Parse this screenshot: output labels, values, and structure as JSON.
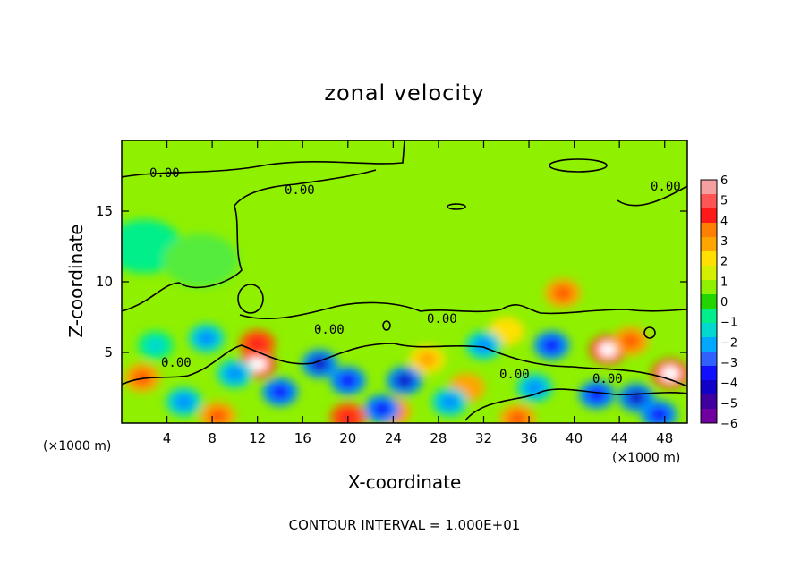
{
  "chart_data": {
    "type": "heatmap",
    "title": "zonal velocity",
    "xlabel": "X-coordinate",
    "ylabel": "Z-coordinate",
    "x_unit": "(×1000 m)",
    "xlim": [
      0,
      50
    ],
    "ylim": [
      0,
      20
    ],
    "x_ticks": [
      4,
      8,
      12,
      16,
      20,
      24,
      28,
      32,
      36,
      40,
      44,
      48
    ],
    "y_ticks": [
      5,
      10,
      15
    ],
    "footer": "CONTOUR INTERVAL = 1.000E+01",
    "contour_label": "0.00",
    "colorbar": {
      "ticks": [
        6,
        5,
        4,
        3,
        2,
        1,
        0,
        -1,
        -2,
        -3,
        -4,
        -5,
        -6
      ],
      "tick_labels": [
        "6",
        "5",
        "4",
        "3",
        "2",
        "1",
        "0",
        "−1",
        "−2",
        "−3",
        "−4",
        "−5",
        "−6"
      ],
      "colors": [
        "#f4a0a0",
        "#ff5555",
        "#ff1a1a",
        "#ff7f00",
        "#ffa500",
        "#ffe000",
        "#d4f000",
        "#8ff000",
        "#22d400",
        "#00ef8a",
        "#00d8d0",
        "#00a8ff",
        "#3060ff",
        "#1010ff",
        "#1000c8",
        "#4000a0",
        "#7000a0"
      ]
    },
    "field_features": [
      {
        "x": 12,
        "z": 4.2,
        "value": 6
      },
      {
        "x": 12,
        "z": 5.6,
        "value": 4.5
      },
      {
        "x": 39,
        "z": 9.2,
        "value": 3.5
      },
      {
        "x": 43,
        "z": 5.2,
        "value": 5.5
      },
      {
        "x": 45,
        "z": 5.8,
        "value": 4
      },
      {
        "x": 48.5,
        "z": 3.5,
        "value": 5.5
      },
      {
        "x": 1.8,
        "z": 3.2,
        "value": 4
      },
      {
        "x": 20,
        "z": 0.4,
        "value": 5
      },
      {
        "x": 24,
        "z": 0.8,
        "value": 4
      },
      {
        "x": 8.5,
        "z": 0.5,
        "value": 4
      },
      {
        "x": 35,
        "z": 0.3,
        "value": 4
      },
      {
        "x": 27,
        "z": 4.5,
        "value": 2.5
      },
      {
        "x": 30.5,
        "z": 2.5,
        "value": 3
      },
      {
        "x": 34,
        "z": 6.5,
        "value": 2
      },
      {
        "x": 17.5,
        "z": 4.2,
        "value": -5
      },
      {
        "x": 20,
        "z": 3.0,
        "value": -4.5
      },
      {
        "x": 25,
        "z": 3.0,
        "value": -5
      },
      {
        "x": 23,
        "z": 1.0,
        "value": -4
      },
      {
        "x": 38,
        "z": 5.5,
        "value": -4.5
      },
      {
        "x": 36.5,
        "z": 2.5,
        "value": -3.5
      },
      {
        "x": 42,
        "z": 2.0,
        "value": -4.5
      },
      {
        "x": 45.5,
        "z": 1.8,
        "value": -5
      },
      {
        "x": 47.5,
        "z": 0.6,
        "value": -4.5
      },
      {
        "x": 14,
        "z": 2.2,
        "value": -4
      },
      {
        "x": 5.5,
        "z": 1.5,
        "value": -3.5
      },
      {
        "x": 7.5,
        "z": 6.0,
        "value": -3
      },
      {
        "x": 10,
        "z": 3.5,
        "value": -3
      },
      {
        "x": 2,
        "z": 12.5,
        "value": -1.5
      },
      {
        "x": 7,
        "z": 11.5,
        "value": -0.8
      },
      {
        "x": 32,
        "z": 5.5,
        "value": -3
      },
      {
        "x": 29,
        "z": 1.5,
        "value": -3
      },
      {
        "x": 3,
        "z": 5.5,
        "value": -2
      }
    ]
  }
}
